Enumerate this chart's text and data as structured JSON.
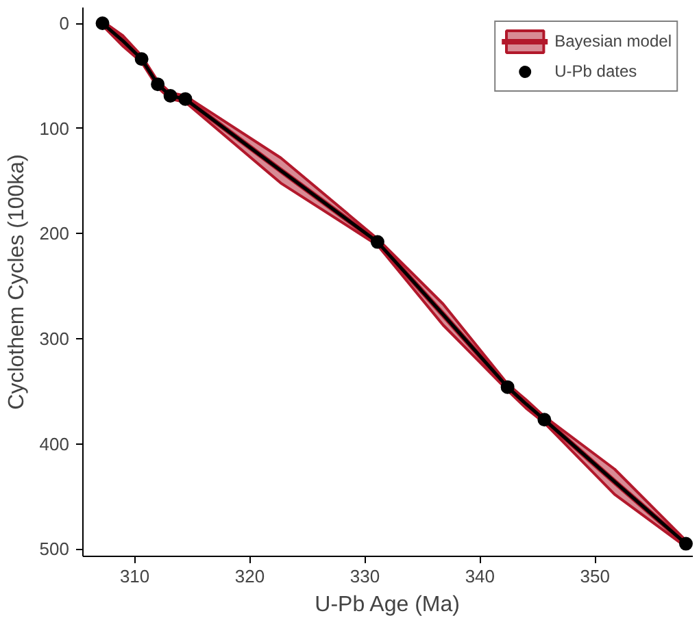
{
  "chart_data": {
    "type": "line",
    "xlabel": "U-Pb Age (Ma)",
    "ylabel": "Cyclothem Cycles (100ka)",
    "xlim": [
      305.5,
      358.5
    ],
    "ylim": [
      507,
      -15
    ],
    "xticks": [
      310,
      320,
      330,
      340,
      350
    ],
    "yticks": [
      0,
      100,
      200,
      300,
      400,
      500
    ],
    "grid": false,
    "legend": "top right",
    "series": [
      {
        "name": "Bayesian model",
        "color": "#b2182b",
        "x": [
          307.2,
          309.0,
          310.6,
          312.0,
          313.1,
          314.4,
          322.7,
          331.1,
          336.8,
          342.4,
          344.0,
          345.6,
          351.7,
          357.9
        ],
        "values": [
          0,
          17,
          34,
          58,
          69,
          72,
          140,
          208,
          277,
          346,
          362,
          377,
          436,
          495
        ],
        "lower": [
          -2,
          12,
          31,
          55,
          66,
          69,
          128,
          205,
          267,
          343,
          358,
          374,
          424,
          492
        ],
        "upper": [
          2,
          22,
          37,
          61,
          72,
          75,
          152,
          211,
          287,
          349,
          366,
          380,
          448,
          498
        ]
      },
      {
        "color": "#000000",
        "x": [
          307.2,
          309.0,
          310.6,
          312.0,
          313.1,
          314.4,
          322.7,
          331.1,
          336.8,
          342.4,
          344.0,
          345.6,
          351.7,
          357.9
        ],
        "values": [
          0,
          17,
          34,
          58,
          69,
          72,
          140,
          208,
          277,
          346,
          362,
          377,
          436,
          495
        ]
      },
      {
        "name": "U-Pb dates",
        "type": "scatter",
        "color": "#000000",
        "marker": "circle",
        "x": [
          307.2,
          310.6,
          312.0,
          313.1,
          314.4,
          331.1,
          342.4,
          345.6,
          357.9
        ],
        "values": [
          0,
          34,
          58,
          69,
          72,
          208,
          346,
          377,
          495
        ]
      }
    ]
  }
}
